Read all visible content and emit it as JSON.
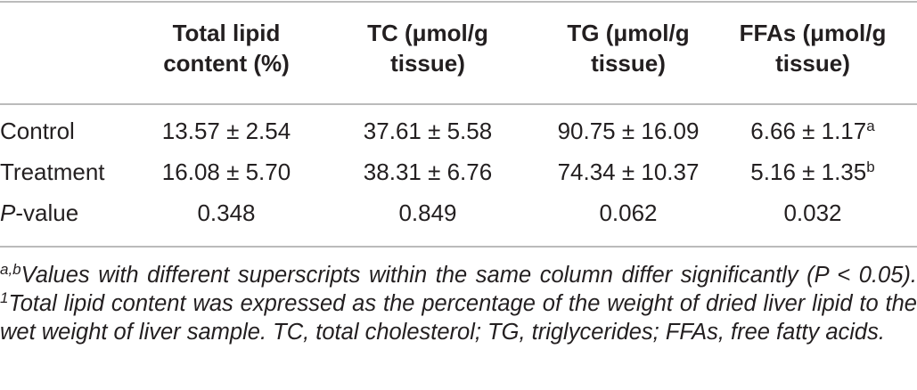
{
  "table": {
    "headers": [
      [
        "Total lipid",
        "content (%)"
      ],
      [
        "TC (μmol/g",
        "tissue)"
      ],
      [
        "TG (μmol/g",
        "tissue)"
      ],
      [
        "FFAs (μmol/g",
        "tissue)"
      ]
    ],
    "rows": [
      {
        "label": {
          "text": "Control"
        },
        "cells": [
          {
            "text": "13.57 ± 2.54"
          },
          {
            "text": "37.61 ± 5.58"
          },
          {
            "text": "90.75 ± 16.09"
          },
          {
            "text": "6.66 ± 1.17",
            "sup": "a"
          }
        ]
      },
      {
        "label": {
          "text": "Treatment"
        },
        "cells": [
          {
            "text": "16.08 ± 5.70"
          },
          {
            "text": "38.31 ± 6.76"
          },
          {
            "text": "74.34 ± 10.37"
          },
          {
            "text": "5.16 ± 1.35",
            "sup": "b"
          }
        ]
      },
      {
        "label": {
          "italic": "P",
          "text": "-value"
        },
        "cells": [
          {
            "text": "0.348"
          },
          {
            "text": "0.849"
          },
          {
            "text": "0.062"
          },
          {
            "text": "0.032"
          }
        ]
      }
    ]
  },
  "footnote": [
    {
      "sup": "a,b"
    },
    {
      "text": "Values with different superscripts within the same column differ significantly (P < 0.05). "
    },
    {
      "sup": "1"
    },
    {
      "text": "Total lipid content was expressed as the percentage of the weight of dried liver lipid to the wet weight of liver sample. TC, total cholesterol; TG, triglycerides; FFAs, free fatty acids."
    }
  ]
}
